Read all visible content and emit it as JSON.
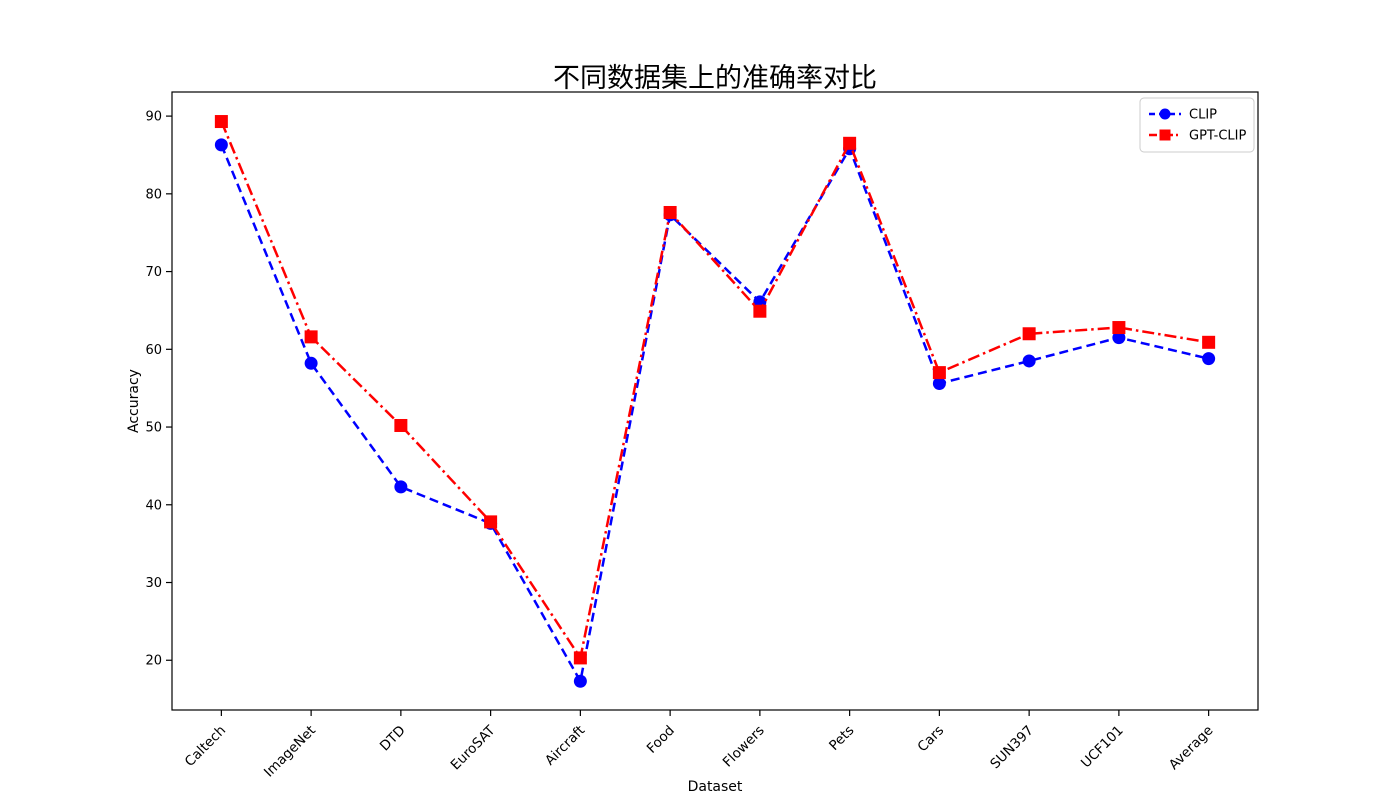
{
  "title": "不同数据集上的准确率对比",
  "chart_data": {
    "type": "line",
    "title": "不同数据集上的准确率对比",
    "xlabel": "Dataset",
    "ylabel": "Accuracy",
    "categories": [
      "Caltech",
      "ImageNet",
      "DTD",
      "EuroSAT",
      "Aircraft",
      "Food",
      "Flowers",
      "Pets",
      "Cars",
      "SUN397",
      "UCF101",
      "Average"
    ],
    "series": [
      {
        "name": "CLIP",
        "color": "#0000ff",
        "linestyle": "dashed",
        "marker": "circle",
        "values": [
          86.3,
          58.2,
          42.3,
          37.6,
          17.3,
          77.3,
          66.1,
          85.8,
          55.6,
          58.5,
          61.5,
          58.8
        ]
      },
      {
        "name": "GPT-CLIP",
        "color": "#ff0000",
        "linestyle": "dashdot",
        "marker": "square",
        "values": [
          89.3,
          61.6,
          50.2,
          37.8,
          20.3,
          77.6,
          64.9,
          86.5,
          57.0,
          62.0,
          62.8,
          60.9
        ]
      }
    ],
    "yticks": [
      20,
      30,
      40,
      50,
      60,
      70,
      80,
      90
    ],
    "ylim": [
      13.6,
      93.1
    ],
    "grid": false,
    "legend_position": "upper right"
  }
}
